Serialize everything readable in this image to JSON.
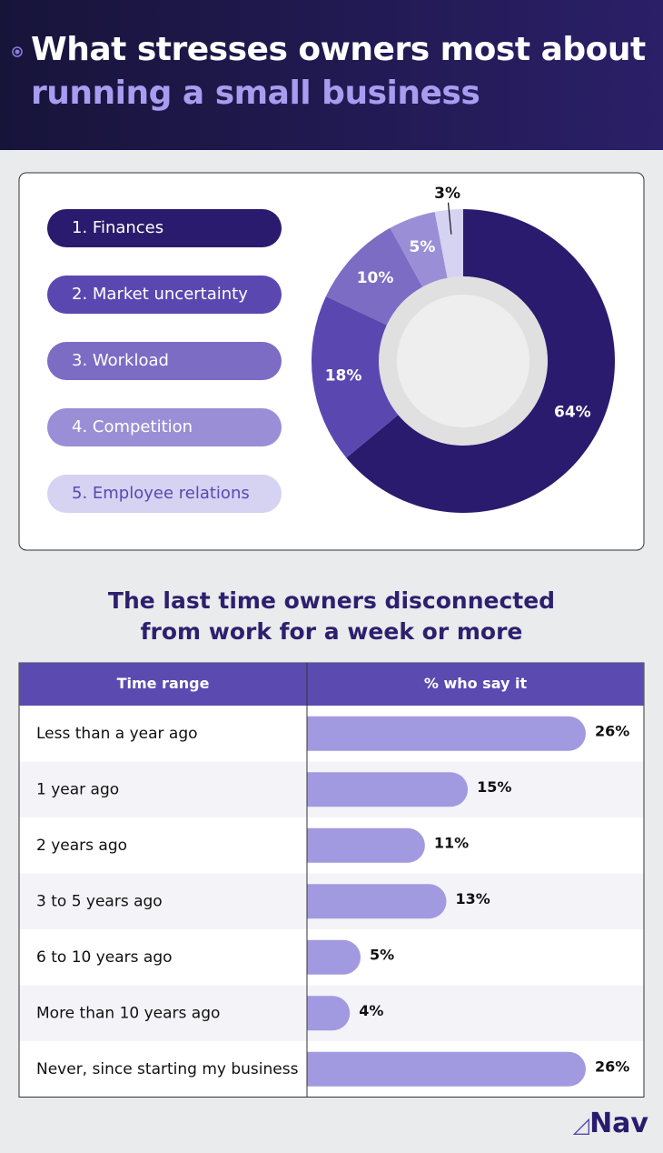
{
  "header": {
    "title": "What stresses owners most about",
    "title_highlight": "running a small business"
  },
  "chart_data": [
    {
      "type": "pie",
      "categories": [
        "1. Finances",
        "2. Market uncertainty",
        "3. Workload",
        "4. Competition",
        "5. Employee relations"
      ],
      "values": [
        64,
        18,
        10,
        5,
        3
      ],
      "value_labels": [
        "64%",
        "18%",
        "10%",
        "5%",
        "3%"
      ],
      "colors": [
        "#2a1b6e",
        "#5a48b0",
        "#7c6cc4",
        "#9a8fd6",
        "#d6d2f2"
      ]
    },
    {
      "type": "bar",
      "title": "The last time owners disconnected from work for a week or more",
      "column_headers": [
        "Time range",
        "% who say it"
      ],
      "categories": [
        "Less than a year ago",
        "1 year ago",
        "2 years ago",
        "3 to 5 years ago",
        "6 to 10 years ago",
        "More than 10 years ago",
        "Never, since starting my business"
      ],
      "values": [
        26,
        15,
        11,
        13,
        5,
        4,
        26
      ],
      "value_labels": [
        "26%",
        "15%",
        "11%",
        "13%",
        "5%",
        "4%",
        "26%"
      ],
      "color": "#a29ae0"
    }
  ],
  "brand": "Nav"
}
